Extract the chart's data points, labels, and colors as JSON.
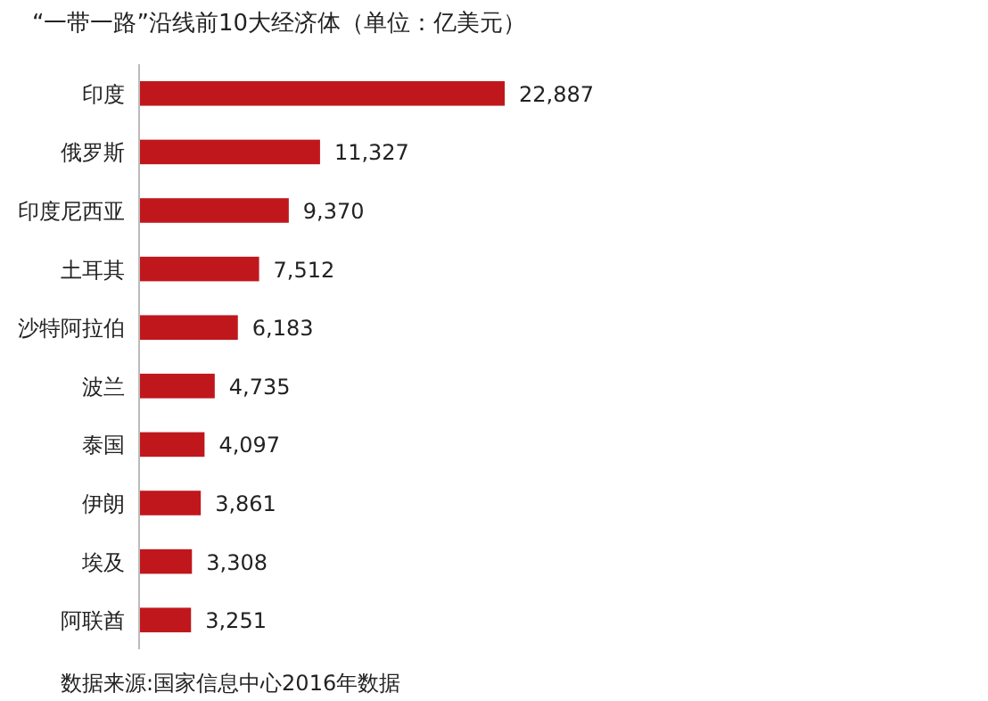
{
  "chart_data": {
    "type": "bar",
    "orientation": "horizontal",
    "title": "“一带一路”沿线前10大经济体（单位：亿美元）",
    "categories": [
      "印度",
      "俄罗斯",
      "印度尼西亚",
      "土耳其",
      "沙特阿拉伯",
      "波兰",
      "泰国",
      "伊朗",
      "埃及",
      "阿联酋"
    ],
    "values": [
      22887,
      11327,
      9370,
      7512,
      6183,
      4735,
      4097,
      3861,
      3308,
      3251
    ],
    "value_labels": [
      "22,887",
      "11,327",
      "9,370",
      "7,512",
      "6,183",
      "4,735",
      "4,097",
      "3,861",
      "3,308",
      "3,251"
    ],
    "color": "#c0171d",
    "annotations": [
      "数据来源:国家信息中心2016年数据"
    ]
  }
}
